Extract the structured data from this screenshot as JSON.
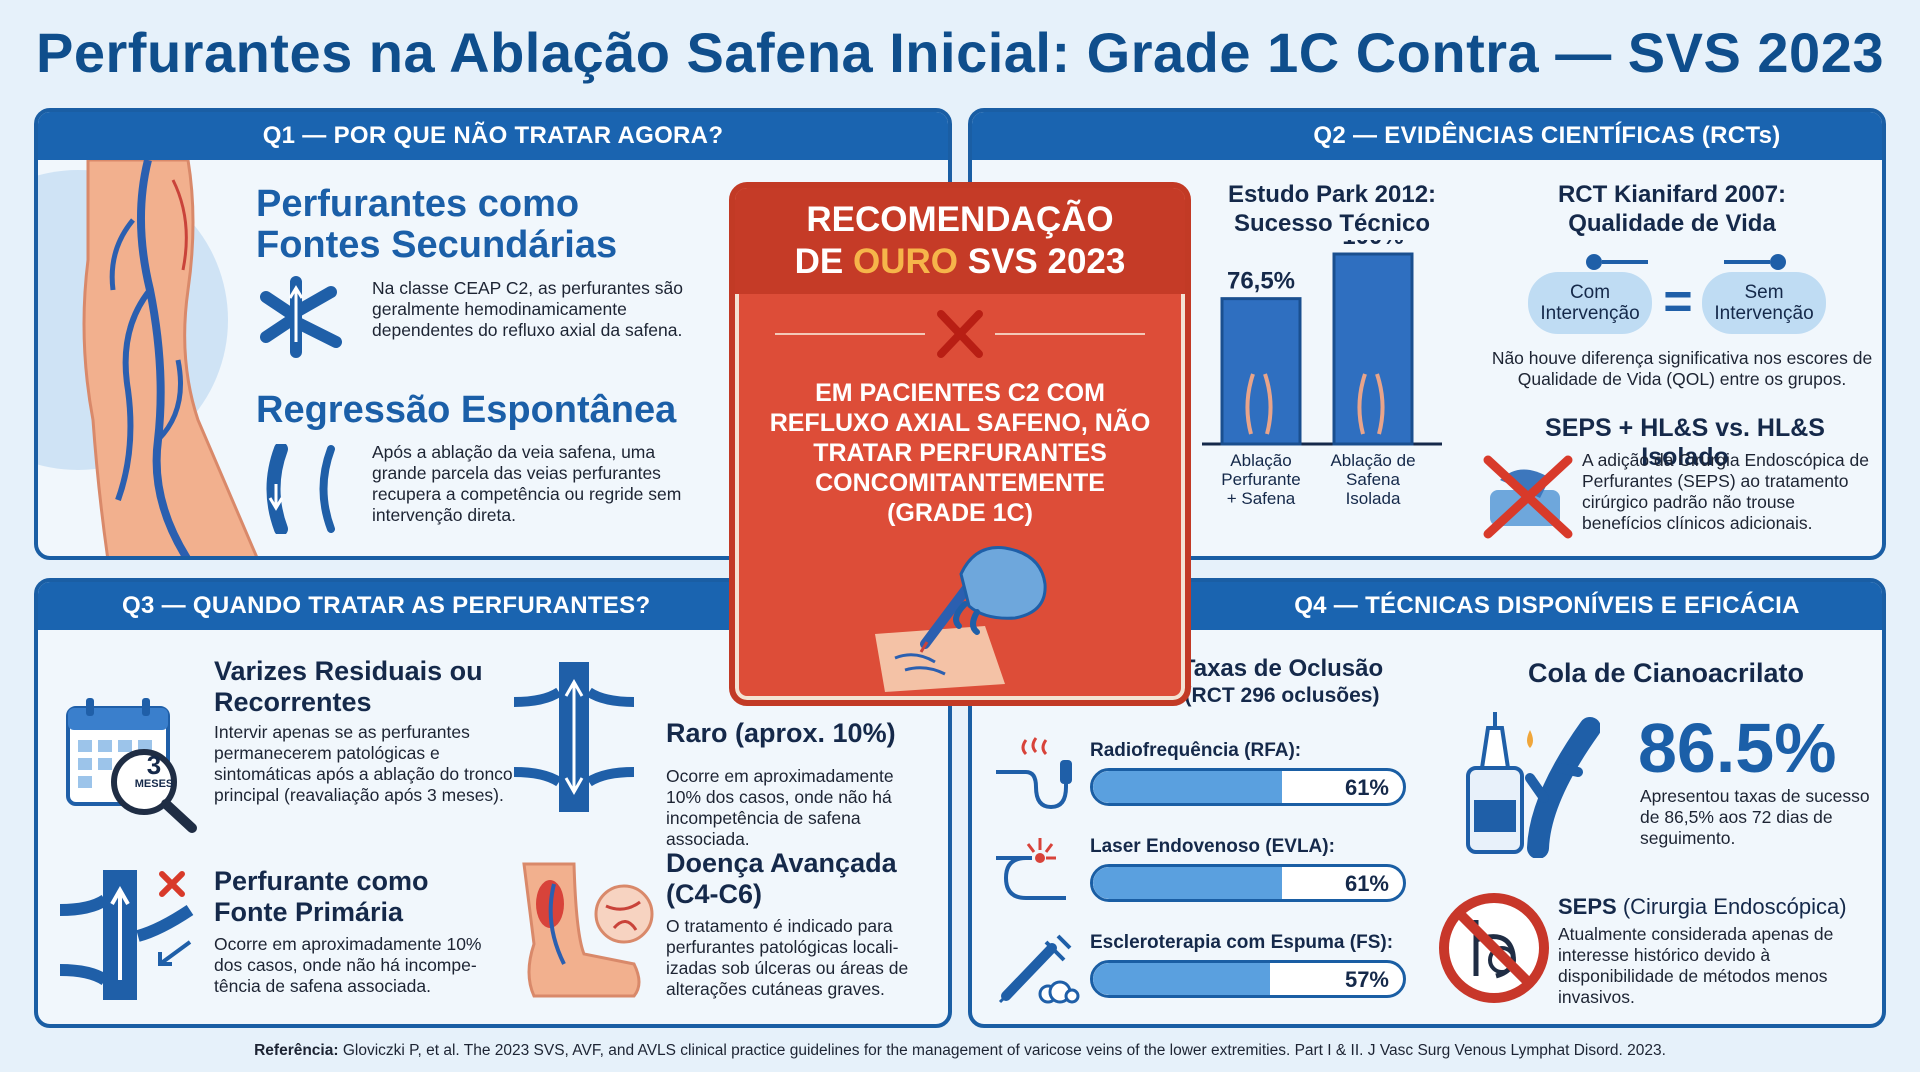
{
  "title": "Perfurantes na Ablação Safena Inicial: Grade 1C Contra — SVS 2023",
  "q1": {
    "header": "Q1 — POR QUE NÃO TRATAR AGORA?",
    "h1": "Perfurantes como Fontes Secundárias",
    "t1": "Na classe CEAP C2, as perfurantes são geralmente hemodinamicamente dependentes do refluxo axial da safena.",
    "h2": "Regressão Espontânea",
    "t2": "Após a ablação da veia safena, uma grande parcela das veias perfurantes recupera a competência ou regride sem intervenção direta."
  },
  "q2": {
    "header": "Q2 — EVIDÊNCIAS CIENTÍFICAS (RCTs)",
    "park_title": "Estudo Park 2012: Sucesso Técnico",
    "kian_title": "RCT Kianifard 2007: Qualidade de Vida",
    "pill_left": "Com Intervenção",
    "pill_right": "Sem Intervenção",
    "equals": "=",
    "qol_text": "Não houve diferença significativa nos escores de Qualidade de Vida (QOL) entre os grupos.",
    "seps_title": "SEPS + HL&S vs. HL&S Isolado",
    "seps_text": "A adição da Cirurgia Endoscópica de Perfurantes (SEPS) ao tratamento cirúrgico padrão não trouse benefícios clínicos adicionais."
  },
  "chart_data": {
    "type": "bar",
    "categories": [
      "Ablação Perfurante + Safena",
      "Ablação de Safena Isolada"
    ],
    "values": [
      76.5,
      100
    ],
    "value_labels": [
      "76,5%",
      "100%"
    ],
    "title": "Estudo Park 2012: Sucesso Técnico",
    "ylim": [
      0,
      100
    ]
  },
  "center": {
    "line1": "RECOMENDAÇÃO",
    "line2a": "DE ",
    "line2b": "OURO",
    "line2c": " SVS 2023",
    "body": "EM PACIENTES C2 COM REFLUXO AXIAL SAFENO, NÃO TRATAR PERFURANTES CONCOMITANTEMENTE (GRADE 1C)"
  },
  "q3": {
    "header": "Q3 — QUANDO TRATAR AS PERFURANTES?",
    "calendar_num": "3",
    "calendar_label": "MESES",
    "a_title": "Varizes Residuais ou Recorrentes",
    "a_text": "Intervir apenas se as perfurantes permanecerem patológicas e sintomáticas após a ablação do tronco principal (reavaliação após 3 meses).",
    "b_title": "Raro (aprox. 10%)",
    "b_text": "Ocorre em aproximadamente 10% dos casos, onde não há incompetência de safena associada.",
    "c_title": "Perfurante como Fonte Primária",
    "c_text": "Ocorre em aproximadamente 10% dos casos, onde não há incompe-tência de safena associada.",
    "d_title": "Doença Avançada (C4-C6)",
    "d_text": "O tratamento é indicado para perfurantes patológicas locali-izadas sob úlceras ou áreas de alterações cutáneas graves."
  },
  "q4": {
    "header": "Q4 — TÉCNICAS DISPONÍVEIS E EFICÁCIA",
    "occl_title": "Taxas de Oclusão",
    "occl_sub": "(RCT 296 oclusões)",
    "bars": [
      {
        "label": "Radiofrequência (RFA):",
        "value": 61,
        "text": "61%"
      },
      {
        "label": "Laser Endovenoso (EVLA):",
        "value": 61,
        "text": "61%"
      },
      {
        "label": "Escleroterapia com Espuma (FS):",
        "value": 57,
        "text": "57%"
      }
    ],
    "glue_title": "Cola de Cianoacrilato",
    "glue_pct": "86.5%",
    "glue_text": "Apresentou taxas de sucesso de 86,5% aos 72 dias de seguimento.",
    "seps_title_bold": "SEPS",
    "seps_title_rest": " (Cirurgia Endoscópica)",
    "seps_text": "Atualmente considerada apenas de interesse histórico devido à disponibilidade de métodos menos invasivos."
  },
  "reference": {
    "label": "Referência:",
    "text": " Gloviczki P, et al. The 2023 SVS, AVF, and AVLS clinical practice guidelines for the management of varicose veins of the lower extremities. Part I & II. J Vasc Surg Venous Lymphat Disord. 2023."
  },
  "colors": {
    "primary": "#1a64b0",
    "title": "#0f4e8c",
    "red": "#dd4d38",
    "gold": "#f6b54a",
    "bar": "#5aa0df"
  }
}
